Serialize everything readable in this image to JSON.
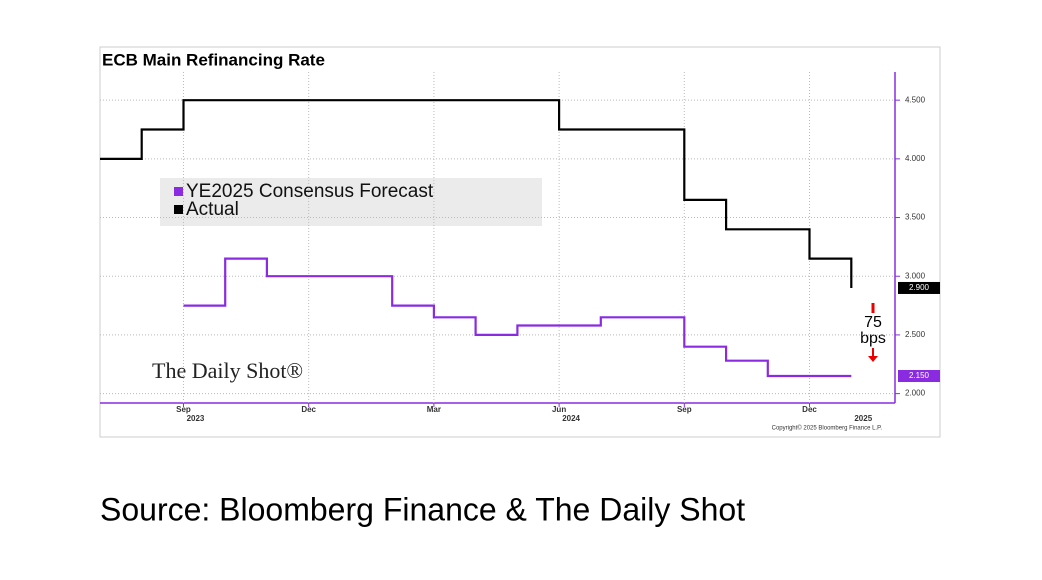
{
  "chart_data": {
    "type": "line",
    "title": "ECB Main Refinancing Rate",
    "xlim": [
      "2023-07",
      "2025-02"
    ],
    "xticks": [
      {
        "value": "2023-09",
        "label": "Sep"
      },
      {
        "value": "2023-12",
        "label": "Dec"
      },
      {
        "value": "2024-03",
        "label": "Mar"
      },
      {
        "value": "2024-06",
        "label": "Jun"
      },
      {
        "value": "2024-09",
        "label": "Sep"
      },
      {
        "value": "2024-12",
        "label": "Dec"
      }
    ],
    "year_labels": [
      {
        "value": "2023-09",
        "label": "2023"
      },
      {
        "value": "2024-06",
        "label": "2024"
      },
      {
        "value": "2025-01",
        "label": "2025"
      }
    ],
    "ylim": [
      1.92,
      4.74
    ],
    "yticks": [
      {
        "value": 2.0,
        "label": "2.000"
      },
      {
        "value": 2.5,
        "label": "2.500"
      },
      {
        "value": 3.0,
        "label": "3.000"
      },
      {
        "value": 3.5,
        "label": "3.500"
      },
      {
        "value": 4.0,
        "label": "4.000"
      },
      {
        "value": 4.5,
        "label": "4.500"
      }
    ],
    "grid": true,
    "series": [
      {
        "name": "YE2025 Consensus Forecast",
        "color": "#8a2be2",
        "x": [
          "2023-09",
          "2023-10",
          "2023-10",
          "2023-11",
          "2023-11",
          "2024-02",
          "2024-02",
          "2024-03",
          "2024-03",
          "2024-04",
          "2024-04",
          "2024-05",
          "2024-05",
          "2024-07",
          "2024-07",
          "2024-09",
          "2024-09",
          "2024-10",
          "2024-10",
          "2024-11",
          "2024-11",
          "2025-01"
        ],
        "values": [
          2.75,
          2.75,
          3.15,
          3.15,
          3.0,
          3.0,
          2.75,
          2.75,
          2.65,
          2.65,
          2.5,
          2.5,
          2.58,
          2.58,
          2.65,
          2.65,
          2.4,
          2.4,
          2.28,
          2.28,
          2.15,
          2.15
        ],
        "last_label": "2.150"
      },
      {
        "name": "Actual",
        "color": "#000000",
        "x": [
          "2023-07",
          "2023-08",
          "2023-08",
          "2023-09",
          "2023-09",
          "2024-06",
          "2024-06",
          "2024-09",
          "2024-09",
          "2024-10",
          "2024-10",
          "2024-12",
          "2024-12",
          "2025-01",
          "2025-01"
        ],
        "values": [
          4.0,
          4.0,
          4.25,
          4.25,
          4.5,
          4.5,
          4.25,
          4.25,
          3.65,
          3.65,
          3.4,
          3.4,
          3.15,
          3.15,
          2.9
        ],
        "last_label": "2.900"
      }
    ],
    "annotation_lines": [
      "75",
      "bps"
    ],
    "watermark": "The Daily Shot®",
    "copyright": "Copyright© 2025 Bloomberg Finance L.P.",
    "source": "Source: Bloomberg Finance & The Daily Shot"
  }
}
